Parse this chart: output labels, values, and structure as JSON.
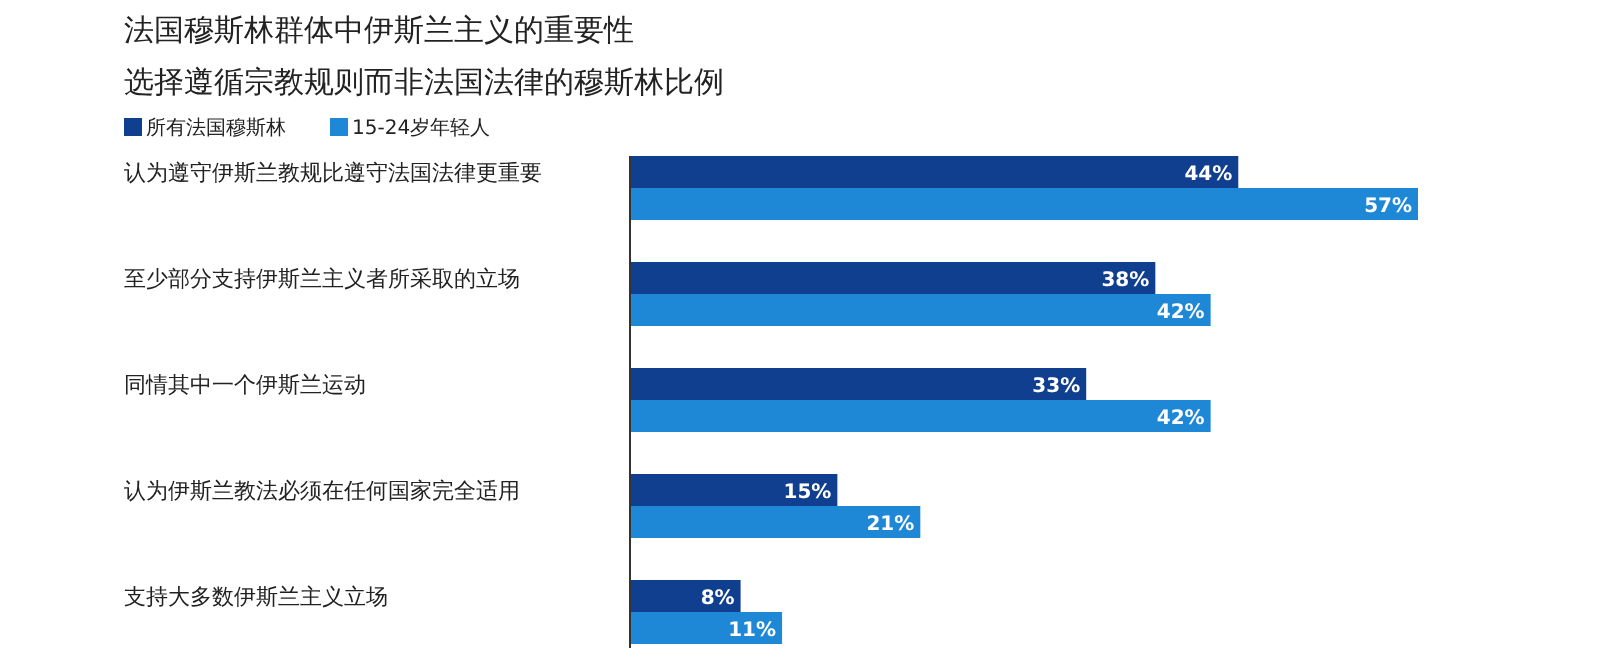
{
  "chart_data": {
    "type": "bar",
    "orientation": "horizontal",
    "title": "法国穆斯林群体中伊斯兰主义的重要性",
    "subtitle": "选择遵循宗教规则而非法国法律的穆斯林比例",
    "categories": [
      "认为遵守伊斯兰教规比遵守法国法律更重要",
      "至少部分支持伊斯兰主义者所采取的立场",
      "同情其中一个伊斯兰运动",
      "认为伊斯兰教法必须在任何国家完全适用",
      "支持大多数伊斯兰主义立场"
    ],
    "series": [
      {
        "name": "所有法国穆斯林",
        "color": "#0f3f8e",
        "values": [
          44,
          38,
          33,
          15,
          8
        ],
        "value_labels": [
          "44%",
          "38%",
          "33%",
          "15%",
          "8%"
        ]
      },
      {
        "name": "15-24岁年轻人",
        "color": "#1e88d6",
        "values": [
          57,
          42,
          42,
          21,
          11
        ],
        "value_labels": [
          "57%",
          "42%",
          "42%",
          "21%",
          "11%"
        ]
      }
    ],
    "legend": "top left"
  }
}
